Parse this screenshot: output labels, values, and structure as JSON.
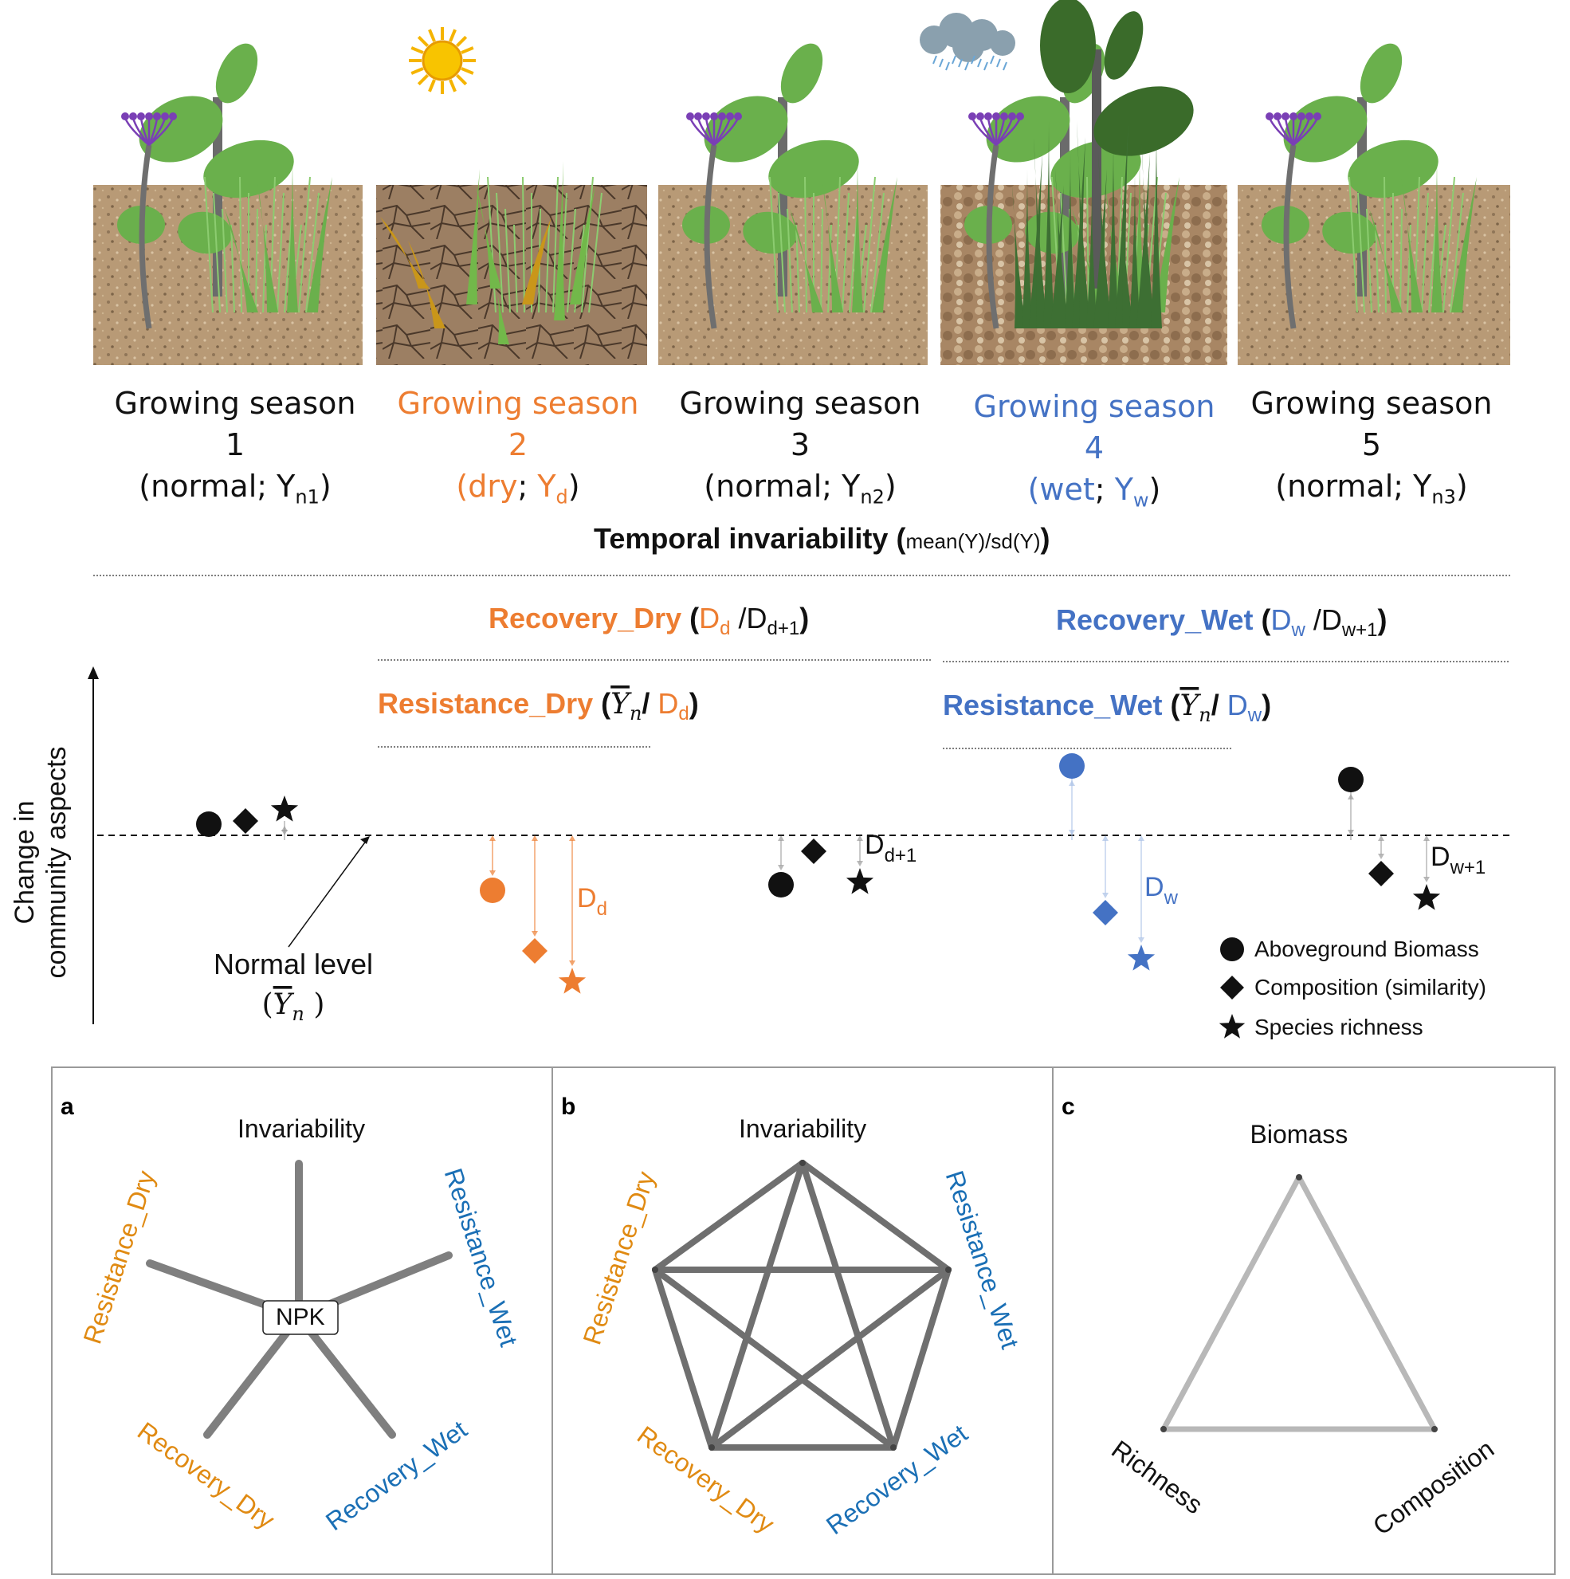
{
  "seasons": [
    {
      "title": "Growing season 1",
      "condition": "normal",
      "symbol": "Y",
      "symbol_sub": "n1",
      "color": "#111111",
      "panel": "normal"
    },
    {
      "title": "Growing season 2",
      "condition": "dry",
      "symbol": "Y",
      "symbol_sub": "d",
      "color": "#ed7d31",
      "panel": "dry"
    },
    {
      "title": "Growing season 3",
      "condition": "normal",
      "symbol": "Y",
      "symbol_sub": "n2",
      "color": "#111111",
      "panel": "normal"
    },
    {
      "title": "Growing season 4",
      "condition": "wet",
      "symbol": "Y",
      "symbol_sub": "w",
      "color": "#4472c4",
      "panel": "wet"
    },
    {
      "title": "Growing season 5",
      "condition": "normal",
      "symbol": "Y",
      "symbol_sub": "n3",
      "color": "#111111",
      "panel": "normal"
    }
  ],
  "invariability": {
    "title": "Temporal invariability",
    "formula": "mean(Y)/sd(Y)"
  },
  "recovery_dry": {
    "name": "Recovery_Dry",
    "num": "D",
    "num_sub": "d",
    "den": "D",
    "den_sub": "d+1"
  },
  "recovery_wet": {
    "name": "Recovery_Wet",
    "num": "D",
    "num_sub": "w",
    "den": "D",
    "den_sub": "w+1"
  },
  "resistance_dry": {
    "name": "Resistance_Dry",
    "num": "Y",
    "num_sub": "n",
    "den": "D",
    "den_sub": "d"
  },
  "resistance_wet": {
    "name": "Resistance_Wet",
    "num": "Y",
    "num_sub": "n",
    "den": "D",
    "den_sub": "w"
  },
  "yaxis_label": [
    "Change in",
    "community aspects"
  ],
  "normal_level": {
    "label": "Normal level",
    "symbol": "Y",
    "symbol_sub": "n"
  },
  "deviation_labels": [
    {
      "main": "D",
      "sub": "d",
      "color": "#ed7d31"
    },
    {
      "main": "D",
      "sub": "d+1",
      "color": "#111111"
    },
    {
      "main": "D",
      "sub": "w",
      "color": "#4472c4"
    },
    {
      "main": "D",
      "sub": "w+1",
      "color": "#111111"
    }
  ],
  "legend": [
    {
      "marker": "circle",
      "label": "Aboveground Biomass"
    },
    {
      "marker": "diamond",
      "label": "Composition (similarity)"
    },
    {
      "marker": "star",
      "label": "Species richness"
    }
  ],
  "colors": {
    "dry": "#ed7d31",
    "wet": "#4472c4",
    "normal": "#111111",
    "label_dry": "#e08a12",
    "label_wet": "#1a6fb5",
    "edge": "#7f7f7f",
    "edge_light": "#b8b8b8"
  },
  "panels": {
    "a": {
      "letter": "a",
      "hub": "NPK",
      "nodes": [
        "Invariability",
        "Resistance_Wet",
        "Recovery_Wet",
        "Recovery_Dry",
        "Resistance_Dry"
      ]
    },
    "b": {
      "letter": "b",
      "nodes": [
        "Invariability",
        "Resistance_Wet",
        "Recovery_Wet",
        "Recovery_Dry",
        "Resistance_Dry"
      ]
    },
    "c": {
      "letter": "c",
      "nodes": [
        "Biomass",
        "Composition",
        "Richness"
      ]
    }
  }
}
